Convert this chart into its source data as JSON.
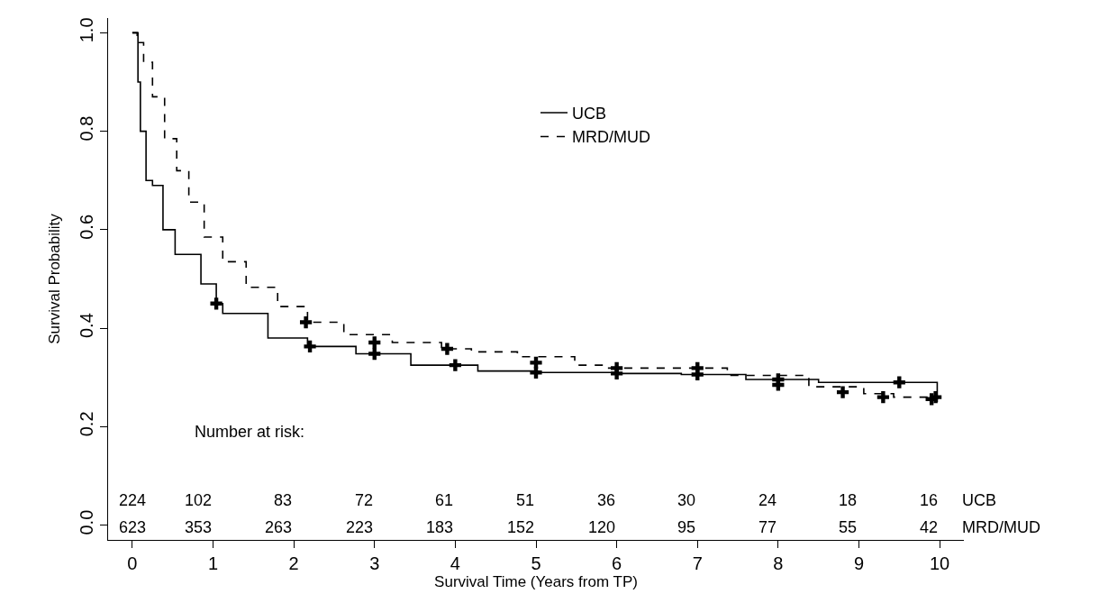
{
  "chart_data": {
    "type": "step",
    "xlabel": "Survival Time (Years from TP)",
    "ylabel": "Survival Probability",
    "xlim": [
      -0.3,
      10.3
    ],
    "ylim": [
      -0.03,
      1.03
    ],
    "xticks": [
      0,
      1,
      2,
      3,
      4,
      5,
      6,
      7,
      8,
      9,
      10
    ],
    "yticks": [
      {
        "value": 0,
        "label": "0.0"
      },
      0.2,
      0.4,
      0.6,
      0.8,
      {
        "value": 1,
        "label": "1.0"
      }
    ],
    "legend": "top",
    "series": [
      {
        "name": "UCB",
        "color": "#000000",
        "line_style": "solid",
        "x": [
          0,
          0.07,
          0.1,
          0.17,
          0.25,
          0.38,
          0.53,
          0.85,
          1.04,
          1.12,
          1.68,
          2.17,
          2.77,
          3.45,
          4.28,
          5.0,
          6.0,
          6.8,
          7.6,
          8.5,
          9.94,
          9.97
        ],
        "values": [
          1.0,
          0.9,
          0.8,
          0.7,
          0.69,
          0.6,
          0.55,
          0.49,
          0.45,
          0.43,
          0.38,
          0.363,
          0.348,
          0.325,
          0.313,
          0.31,
          0.308,
          0.306,
          0.296,
          0.29,
          0.29,
          0.25
        ]
      },
      {
        "name": "MRD/MUD",
        "color": "#000000",
        "line_style": "dashed",
        "x": [
          0,
          0.06,
          0.14,
          0.25,
          0.4,
          0.55,
          0.7,
          0.89,
          1.12,
          1.41,
          1.8,
          2.17,
          2.62,
          3.22,
          3.83,
          4.2,
          4.77,
          5.48,
          5.9,
          6.8,
          7.37,
          8.38,
          9.06,
          9.43,
          9.97
        ],
        "values": [
          1.0,
          0.98,
          0.94,
          0.87,
          0.785,
          0.72,
          0.656,
          0.585,
          0.535,
          0.483,
          0.444,
          0.412,
          0.387,
          0.371,
          0.358,
          0.352,
          0.342,
          0.325,
          0.319,
          0.319,
          0.304,
          0.281,
          0.267,
          0.26,
          0.255
        ]
      },
      {
        "type": "scatter",
        "marker": "cross",
        "color": "#000000",
        "x": [
          1.04,
          2.2,
          3.0,
          4.0,
          5.0,
          6.0,
          7.0,
          8.0,
          9.5,
          9.95
        ],
        "values": [
          0.45,
          0.363,
          0.348,
          0.325,
          0.31,
          0.308,
          0.306,
          0.296,
          0.29,
          0.26
        ]
      },
      {
        "type": "scatter",
        "marker": "cross",
        "color": "#000000",
        "x": [
          2.15,
          3.0,
          3.9,
          5.0,
          6.0,
          7.0,
          8.0,
          8.8,
          9.3,
          9.9
        ],
        "values": [
          0.412,
          0.371,
          0.358,
          0.33,
          0.319,
          0.319,
          0.285,
          0.27,
          0.26,
          0.256
        ]
      }
    ],
    "annotations": [
      "Number at risk:",
      "224",
      "102",
      "83",
      "72",
      "61",
      "51",
      "36",
      "30",
      "24",
      "18",
      "16",
      "UCB",
      "623",
      "353",
      "263",
      "223",
      "183",
      "152",
      "120",
      "95",
      "77",
      "55",
      "42",
      "MRD/MUD"
    ]
  }
}
